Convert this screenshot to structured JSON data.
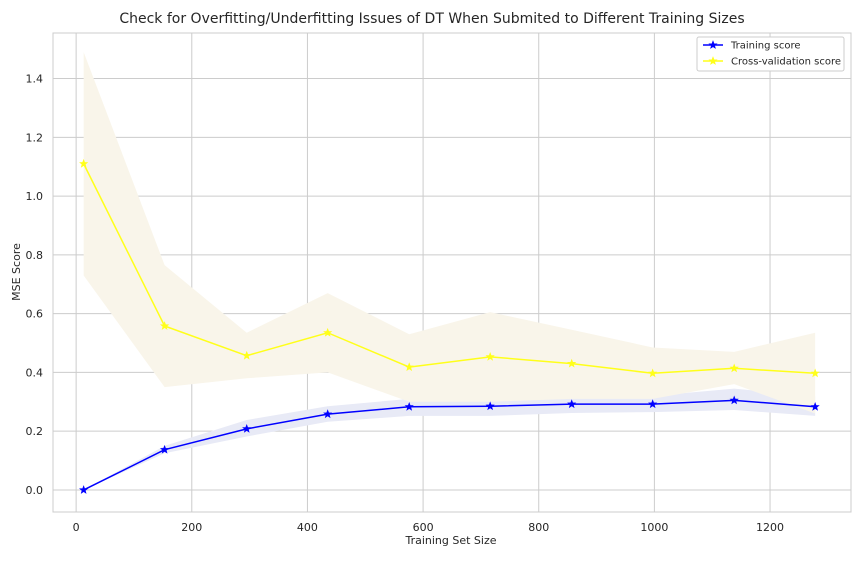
{
  "chart_data": {
    "type": "line",
    "title": "Check for Overfitting/Underfitting Issues of DT When Submited to Different Training Sizes",
    "xlabel": "Training Set Size",
    "ylabel": "MSE Score",
    "xlim": [
      -40,
      1340
    ],
    "ylim": [
      -0.075,
      1.555
    ],
    "xticks": [
      0,
      200,
      400,
      600,
      800,
      1000,
      1200
    ],
    "yticks": [
      0.0,
      0.2,
      0.4,
      0.6,
      0.8,
      1.0,
      1.2,
      1.4
    ],
    "grid": true,
    "legend_position": "top-right",
    "x": [
      13,
      153,
      295,
      435,
      576,
      716,
      857,
      997,
      1138,
      1278
    ],
    "series": [
      {
        "name": "Training score",
        "color": "#0000ff",
        "band_color": "#e8eaf6",
        "marker": "star",
        "values": [
          0.0,
          0.137,
          0.208,
          0.258,
          0.283,
          0.285,
          0.292,
          0.292,
          0.305,
          0.283
        ],
        "band_lower": [
          0.0,
          0.125,
          0.182,
          0.232,
          0.252,
          0.252,
          0.262,
          0.265,
          0.272,
          0.252
        ],
        "band_upper": [
          0.0,
          0.15,
          0.238,
          0.285,
          0.31,
          0.318,
          0.322,
          0.32,
          0.345,
          0.318
        ]
      },
      {
        "name": "Cross-validation score",
        "color": "#ffff1a",
        "band_color": "#f9f5ea",
        "marker": "star",
        "values": [
          1.11,
          0.558,
          0.457,
          0.535,
          0.418,
          0.453,
          0.43,
          0.397,
          0.414,
          0.397
        ],
        "band_lower": [
          0.73,
          0.35,
          0.38,
          0.4,
          0.3,
          0.3,
          0.31,
          0.31,
          0.36,
          0.26
        ],
        "band_upper": [
          1.49,
          0.765,
          0.535,
          0.67,
          0.53,
          0.605,
          0.545,
          0.485,
          0.47,
          0.535
        ]
      }
    ]
  }
}
